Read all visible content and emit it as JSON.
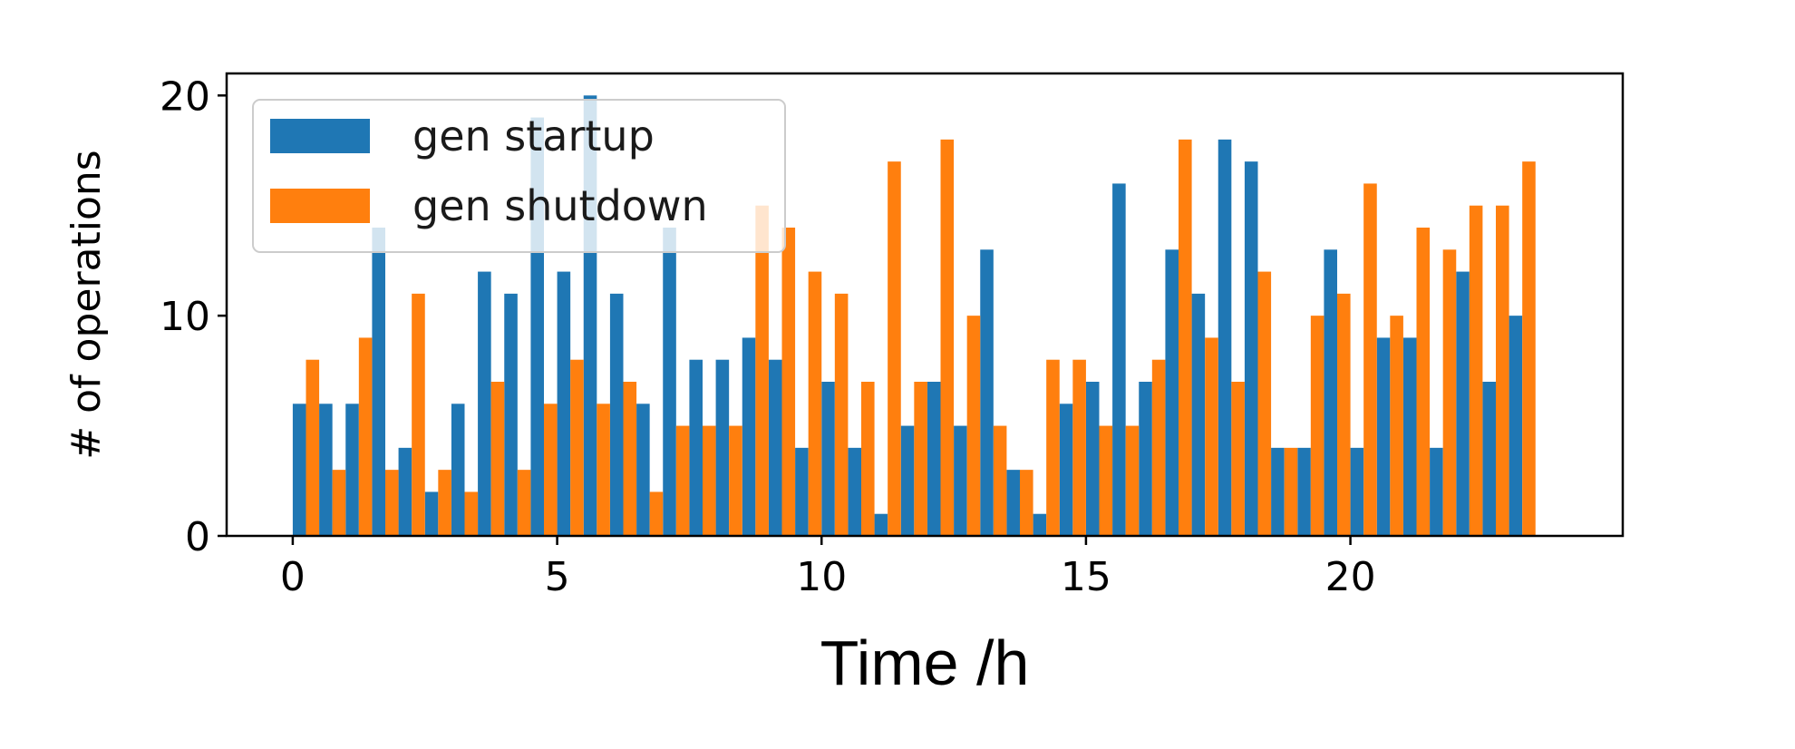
{
  "chart_data": {
    "type": "bar",
    "xlabel": "Time /h",
    "ylabel": "# of operations",
    "xlim": [
      -1.25,
      25.15
    ],
    "ylim": [
      0,
      21
    ],
    "xticks": [
      "0",
      "5",
      "10",
      "15",
      "20"
    ],
    "yticks": [
      "0",
      "10",
      "20"
    ],
    "grid": false,
    "legend_position": "top-left",
    "colors": {
      "startup": "#1f77b4",
      "shutdown": "#ff7f0e"
    },
    "x": [
      0.25,
      0.75,
      1.25,
      1.75,
      2.25,
      2.75,
      3.25,
      3.75,
      4.25,
      4.75,
      5.25,
      5.75,
      6.25,
      6.75,
      7.25,
      7.75,
      8.25,
      8.75,
      9.25,
      9.75,
      10.25,
      10.75,
      11.25,
      11.75,
      12.25,
      12.75,
      13.25,
      13.75,
      14.25,
      14.75,
      15.25,
      15.75,
      16.25,
      16.75,
      17.25,
      17.75,
      18.25,
      18.75,
      19.25,
      19.75,
      20.25,
      20.75,
      21.25,
      21.75,
      22.25,
      22.75,
      23.25
    ],
    "series": [
      {
        "name": "gen startup",
        "color": "#1f77b4",
        "values": [
          6,
          6,
          6,
          14,
          4,
          2,
          6,
          12,
          11,
          19,
          12,
          20,
          11,
          6,
          14,
          8,
          8,
          9,
          8,
          4,
          7,
          4,
          1,
          5,
          7,
          5,
          13,
          3,
          1,
          6,
          7,
          16,
          7,
          13,
          11,
          18,
          17,
          4,
          4,
          13,
          4,
          9,
          9,
          4,
          12,
          7,
          10
        ]
      },
      {
        "name": "gen shutdown",
        "color": "#ff7f0e",
        "values": [
          8,
          3,
          9,
          3,
          11,
          3,
          2,
          7,
          3,
          6,
          8,
          6,
          7,
          2,
          5,
          5,
          5,
          15,
          14,
          12,
          11,
          7,
          17,
          7,
          18,
          10,
          5,
          3,
          8,
          8,
          5,
          5,
          8,
          18,
          9,
          7,
          12,
          4,
          10,
          11,
          16,
          10,
          14,
          13,
          15,
          15,
          17
        ]
      }
    ]
  }
}
